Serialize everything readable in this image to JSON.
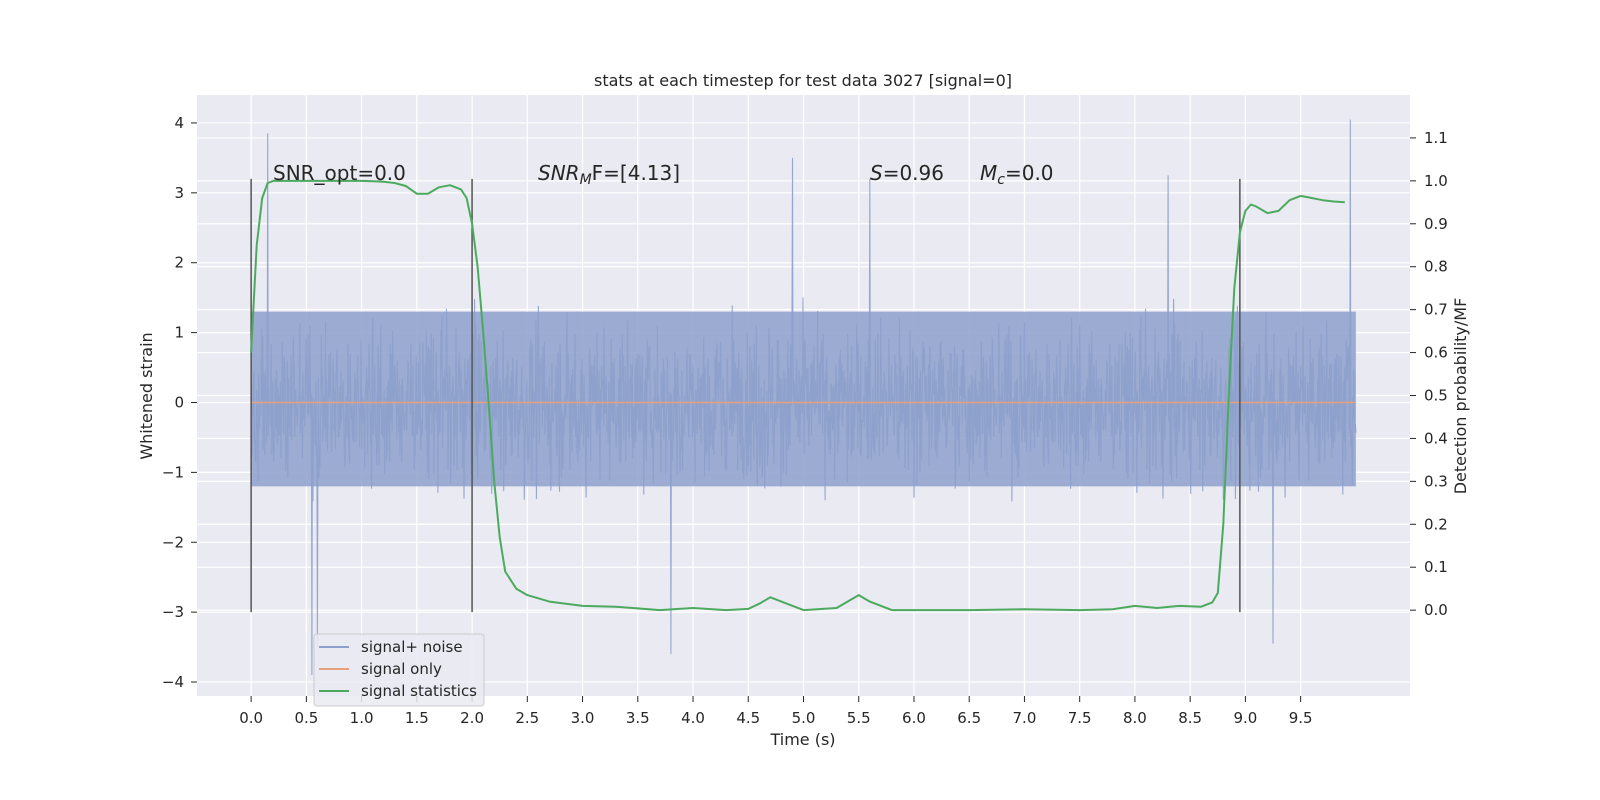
{
  "chart_data": {
    "type": "line",
    "title": "stats at each timestep for test data 3027 [signal=0]",
    "xlabel": "Time (s)",
    "ylabel": "Whitened strain",
    "ylabel_right": "Detection probability/MF",
    "xlim": [
      -0.49,
      10.49
    ],
    "ylim": [
      -4.2,
      4.4
    ],
    "ylim_right": [
      -0.2,
      1.2
    ],
    "xticks": [
      "0.0",
      "0.5",
      "1.0",
      "1.5",
      "2.0",
      "2.5",
      "3.0",
      "3.5",
      "4.0",
      "4.5",
      "5.0",
      "5.5",
      "6.0",
      "6.5",
      "7.0",
      "7.5",
      "8.0",
      "8.5",
      "9.0",
      "9.5"
    ],
    "yticks": [
      "4",
      "3",
      "2",
      "1",
      "0",
      "−1",
      "−2",
      "−3",
      "−4"
    ],
    "yticks_right": [
      "1.1",
      "1.0",
      "0.9",
      "0.8",
      "0.7",
      "0.6",
      "0.5",
      "0.4",
      "0.3",
      "0.2",
      "0.1",
      "0.0"
    ],
    "grid": true,
    "legend_position": "lower-left",
    "annotations": {
      "snr_opt": "SNR_opt=0.0",
      "snr_mf_italic": "SNR",
      "snr_mf_sub": "M",
      "snr_mf_rest": "F=[4.13]",
      "s_italic": "S",
      "s_rest": "=0.96",
      "mc_italic": "M",
      "mc_sub": "c",
      "mc_rest": "=0.0"
    },
    "vlines": [
      0.0,
      2.0,
      8.95
    ],
    "vline_range": [
      -3.0,
      3.2
    ],
    "series": [
      {
        "name": "signal+ noise",
        "color": "#8da0cb",
        "t_range": [
          0.0,
          10.0
        ],
        "core_amplitude": [
          -1.2,
          1.3
        ],
        "min": -3.9,
        "max": 4.05,
        "spikes": [
          [
            0.15,
            3.85
          ],
          [
            0.55,
            -3.9
          ],
          [
            0.6,
            -3.5
          ],
          [
            3.8,
            -3.6
          ],
          [
            4.9,
            3.5
          ],
          [
            9.25,
            -3.45
          ],
          [
            9.95,
            4.05
          ],
          [
            5.6,
            3.2
          ],
          [
            8.3,
            3.25
          ]
        ]
      },
      {
        "name": "signal only",
        "color": "#e5a07e",
        "x": [
          0.0,
          10.0
        ],
        "y": [
          0.0,
          0.0
        ]
      },
      {
        "name": "signal statistics",
        "color": "#4caa5e",
        "axis": "right",
        "x": [
          0.0,
          0.05,
          0.1,
          0.15,
          0.2,
          0.3,
          0.5,
          0.8,
          1.0,
          1.1,
          1.2,
          1.3,
          1.4,
          1.5,
          1.6,
          1.7,
          1.8,
          1.9,
          1.95,
          2.0,
          2.05,
          2.1,
          2.15,
          2.2,
          2.25,
          2.3,
          2.35,
          2.4,
          2.5,
          2.7,
          3.0,
          3.3,
          3.7,
          4.0,
          4.3,
          4.5,
          4.6,
          4.7,
          4.8,
          5.0,
          5.3,
          5.5,
          5.6,
          5.8,
          6.0,
          6.5,
          7.0,
          7.5,
          7.8,
          8.0,
          8.2,
          8.4,
          8.6,
          8.7,
          8.75,
          8.8,
          8.85,
          8.9,
          8.95,
          9.0,
          9.05,
          9.1,
          9.2,
          9.3,
          9.4,
          9.5,
          9.6,
          9.7,
          9.8,
          9.9
        ],
        "y": [
          0.6,
          0.85,
          0.96,
          0.995,
          1.0,
          1.0,
          1.0,
          1.0,
          1.0,
          0.999,
          0.998,
          0.995,
          0.988,
          0.97,
          0.97,
          0.985,
          0.99,
          0.98,
          0.96,
          0.9,
          0.8,
          0.65,
          0.48,
          0.3,
          0.17,
          0.09,
          0.07,
          0.05,
          0.035,
          0.02,
          0.01,
          0.008,
          0.0,
          0.005,
          0.0,
          0.003,
          0.015,
          0.03,
          0.02,
          0.0,
          0.005,
          0.035,
          0.02,
          0.0,
          0.0,
          0.0,
          0.002,
          0.0,
          0.002,
          0.01,
          0.005,
          0.01,
          0.008,
          0.018,
          0.04,
          0.2,
          0.5,
          0.75,
          0.88,
          0.93,
          0.945,
          0.94,
          0.925,
          0.93,
          0.955,
          0.965,
          0.96,
          0.955,
          0.952,
          0.95
        ]
      }
    ]
  }
}
